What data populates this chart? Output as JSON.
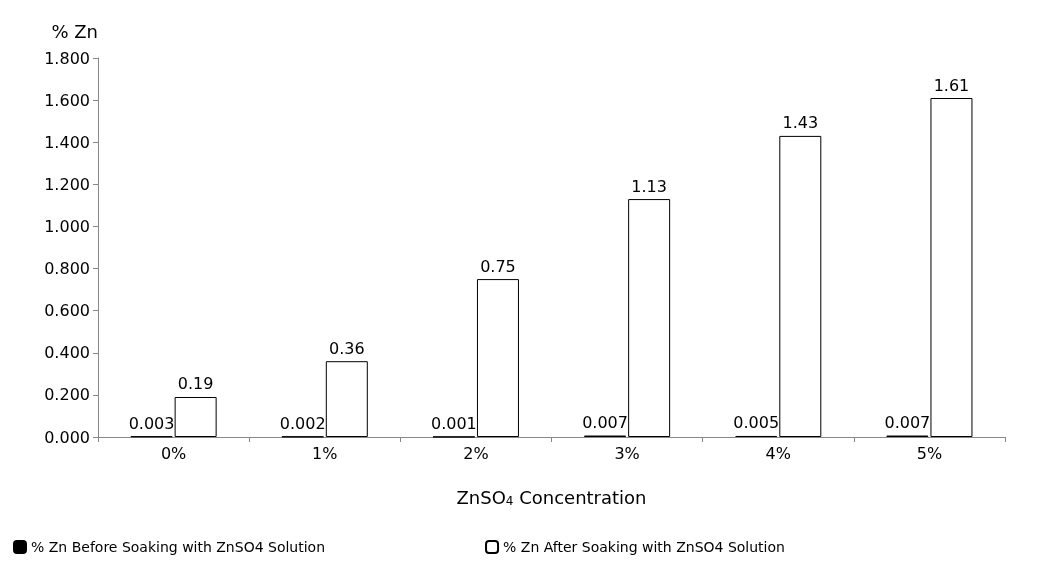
{
  "chart_data": {
    "type": "bar",
    "ylabel": "% Zn",
    "xlabel": "ZnSO$_{4}$ Concentration",
    "categories": [
      "0%",
      "1%",
      "2%",
      "3%",
      "4%",
      "5%"
    ],
    "series": [
      {
        "name": "% Zn Before Soaking with ZnSO4 Solution",
        "color": "#000000",
        "values": [
          0.003,
          0.002,
          0.001,
          0.007,
          0.005,
          0.007
        ]
      },
      {
        "name": "% Zn After Soaking with ZnSO4 Solution",
        "color": "#ffffff",
        "values": [
          0.19,
          0.36,
          0.75,
          1.13,
          1.43,
          1.61
        ]
      }
    ],
    "ylim": [
      0,
      1.8
    ],
    "yticks": [
      {
        "value": 0,
        "label": "0.000"
      },
      {
        "value": 0.2,
        "label": "0.200"
      },
      {
        "value": 0.4,
        "label": "0.400"
      },
      {
        "value": 0.6,
        "label": "0.600"
      },
      {
        "value": 0.8,
        "label": "0.800"
      },
      {
        "value": 1,
        "label": "1.000"
      },
      {
        "value": 1.2,
        "label": "1.200"
      },
      {
        "value": 1.4,
        "label": "1.400"
      },
      {
        "value": 1.6,
        "label": "1.600"
      },
      {
        "value": 1.8,
        "label": "1.800"
      }
    ],
    "data_labels": true,
    "grid": false,
    "legend": "bottom"
  }
}
